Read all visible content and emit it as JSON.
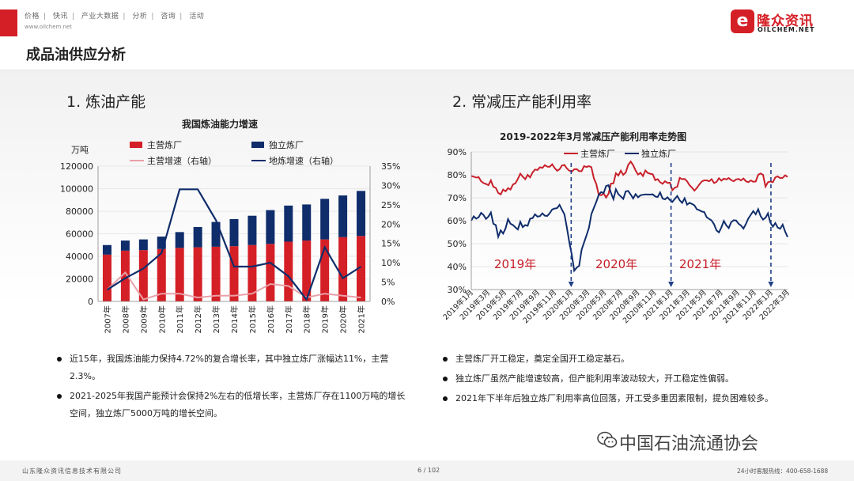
{
  "header": {
    "nav": [
      "价格",
      "快讯",
      "产业大数据",
      "分析",
      "咨询",
      "活动"
    ],
    "site": "www.oilchem.net",
    "logo_cn": "隆众资讯",
    "logo_en": "OILCHEM.NET"
  },
  "slide_title": "成品油供应分析",
  "left": {
    "section_title": "1. 炼油产能",
    "bullets": [
      "近15年，我国炼油能力保持4.72%的复合增长率，其中独立炼厂涨幅达11%，主营2.3%。",
      "2021-2025年我国产能预计会保持2%左右的低增长率，主营炼厂存在1100万吨的增长空间，独立炼厂5000万吨的增长空间。"
    ]
  },
  "right": {
    "section_title": "2. 常减压产能利用率",
    "annotations": [
      "2019年",
      "2020年",
      "2021年"
    ],
    "bullets": [
      "主营炼厂开工稳定，奠定全国开工稳定基石。",
      "独立炼厂虽然产能增速较高，但产能利用率波动较大，开工稳定性偏弱。",
      "2021年下半年后独立炼厂利用率高位回落，开工受多重因素限制，提负困难较多。"
    ]
  },
  "footer": {
    "company": "山东隆众资讯信息技术有限公司",
    "page": "6 / 102",
    "hotline": "24小时客服热线：400-658-1688",
    "watermark": "中国石油流通协会"
  },
  "chart_data": [
    {
      "type": "bar",
      "title": "我国炼油能力增速",
      "ylabel": "万吨",
      "ylim": [
        0,
        120000
      ],
      "y2lim": [
        0,
        35
      ],
      "y_ticks": [
        "120000",
        "100000",
        "80000",
        "60000",
        "40000",
        "20000",
        "0"
      ],
      "y2_ticks": [
        "35%",
        "30%",
        "25%",
        "20%",
        "15%",
        "10%",
        "5%",
        "0%"
      ],
      "categories": [
        "2007年",
        "2008年",
        "2009年",
        "2010年",
        "2011年",
        "2012年",
        "2013年",
        "2014年",
        "2015年",
        "2016年",
        "2017年",
        "2018年",
        "2019年",
        "2020年",
        "2021年"
      ],
      "legend_position": "top",
      "series": [
        {
          "name": "主营炼厂",
          "kind": "bar-stacked",
          "color": "#d51f26",
          "values": [
            41500,
            45000,
            45500,
            46500,
            47500,
            48000,
            48500,
            49000,
            50000,
            51000,
            53000,
            54000,
            55000,
            57000,
            58000
          ]
        },
        {
          "name": "独立炼厂",
          "kind": "bar-stacked",
          "color": "#0f2d6b",
          "values": [
            8500,
            9000,
            9500,
            11000,
            14000,
            18000,
            22000,
            24000,
            26000,
            30000,
            32000,
            32000,
            36000,
            37000,
            40000
          ]
        },
        {
          "name": "主营增速（右轴）",
          "kind": "line-right",
          "color": "#e9a0a8",
          "values": [
            3.0,
            7.5,
            0.5,
            2.0,
            2.0,
            1.0,
            1.5,
            1.5,
            2.0,
            4.5,
            4.0,
            1.0,
            2.0,
            1.5,
            1.0
          ]
        },
        {
          "name": "地炼增速（右轴）",
          "kind": "line-right",
          "color": "#0f2d6b",
          "values": [
            3.0,
            6.0,
            8.5,
            12.5,
            29.0,
            29.0,
            21.0,
            9.0,
            9.0,
            10.0,
            6.5,
            0.5,
            14.0,
            6.0,
            9.0
          ]
        }
      ]
    },
    {
      "type": "line",
      "title": "2019-2022年3月常减压产能利用率走势图",
      "ylim": [
        30,
        90
      ],
      "y_ticks": [
        "90%",
        "80%",
        "70%",
        "60%",
        "50%",
        "40%",
        "30%"
      ],
      "x_ticks": [
        "2019年1月",
        "2019年3月",
        "2019年5月",
        "2019年7月",
        "2019年9月",
        "2019年11月",
        "2020年1月",
        "2020年3月",
        "2020年5月",
        "2020年7月",
        "2020年9月",
        "2020年11月",
        "2021年1月",
        "2021年3月",
        "2021年5月",
        "2021年7月",
        "2021年9月",
        "2021年11月",
        "2022年1月",
        "2022年3月"
      ],
      "legend_position": "top-left",
      "series": [
        {
          "name": "主营炼厂",
          "color": "#c8202a",
          "values": [
            79.5,
            79.2,
            78.8,
            79.0,
            77.2,
            76.4,
            76.0,
            75.5,
            77.6,
            74.8,
            74.3,
            72.1,
            71.5,
            73.6,
            72.8,
            74.2,
            73.6,
            75.8,
            76.3,
            78.2,
            80.5,
            79.2,
            78.1,
            80.0,
            78.9,
            81.0,
            82.3,
            82.1,
            83.3,
            83.0,
            84.2,
            83.6,
            83.5,
            84.6,
            83.0,
            81.8,
            82.4,
            84.1,
            84.3,
            82.8,
            81.8,
            81.4,
            82.4,
            82.5,
            81.6,
            81.6,
            83.8,
            83.4,
            83.8,
            83.3,
            78.5,
            76.0,
            71.3,
            71.1,
            71.9,
            70.1,
            71.8,
            76.2,
            76.3,
            80.7,
            79.7,
            81.8,
            80.0,
            81.0,
            84.3,
            85.8,
            84.2,
            81.9,
            80.1,
            80.9,
            79.5,
            81.9,
            80.8,
            80.5,
            80.2,
            77.7,
            78.1,
            76.8,
            76.1,
            77.2,
            76.5,
            76.6,
            73.3,
            74.4,
            74.8,
            78.7,
            78.1,
            78.2,
            77.2,
            75.5,
            74.4,
            73.1,
            74.3,
            75.8,
            77.1,
            77.6,
            77.6,
            77.2,
            78.1,
            76.4,
            76.9,
            78.5,
            77.5,
            78.3,
            78.0,
            78.6,
            77.7,
            77.2,
            78.0,
            78.2,
            77.6,
            78.4,
            77.2,
            76.8,
            77.6,
            77.0,
            77.1,
            80.0,
            80.6,
            80.0,
            74.9,
            76.8,
            77.1,
            76.8,
            78.9,
            79.3,
            78.6,
            78.7,
            79.8,
            79.1
          ]
        },
        {
          "name": "独立炼厂",
          "color": "#0f2d6b",
          "values": [
            60.1,
            61.9,
            60.9,
            61.5,
            63.4,
            62.5,
            60.8,
            61.8,
            63.6,
            58.7,
            58.1,
            53.0,
            55.8,
            54.4,
            56.7,
            60.7,
            58.7,
            58.1,
            57.1,
            56.2,
            59.5,
            57.2,
            58.1,
            57.8,
            60.9,
            61.1,
            62.8,
            61.8,
            62.0,
            63.2,
            62.2,
            62.1,
            63.3,
            64.9,
            65.3,
            65.5,
            66.9,
            64.8,
            62.8,
            57.0,
            50.6,
            45.2,
            38.2,
            39.6,
            40.3,
            47.3,
            50.5,
            53.6,
            56.9,
            62.9,
            65.6,
            68.2,
            71.3,
            72.5,
            72.1,
            75.1,
            75.5,
            72.1,
            69.4,
            73.7,
            71.6,
            70.6,
            69.5,
            72.8,
            73.0,
            71.4,
            69.7,
            71.6,
            70.2,
            71.1,
            71.3,
            71.5,
            71.4,
            71.4,
            71.5,
            70.6,
            70.3,
            72.3,
            69.7,
            69.3,
            70.2,
            69.0,
            68.2,
            69.5,
            70.8,
            68.9,
            67.8,
            69.8,
            67.0,
            67.8,
            67.3,
            66.7,
            65.0,
            64.6,
            64.0,
            63.8,
            61.5,
            60.8,
            60.1,
            58.5,
            55.8,
            54.9,
            57.1,
            59.9,
            58.0,
            56.8,
            59.4,
            60.2,
            60.1,
            58.7,
            57.9,
            56.6,
            58.6,
            61.0,
            62.6,
            64.2,
            62.8,
            65.0,
            62.0,
            60.5,
            61.3,
            63.2,
            59.1,
            57.4,
            59.0,
            57.0,
            56.5,
            58.3,
            55.3,
            52.9
          ]
        }
      ]
    }
  ]
}
